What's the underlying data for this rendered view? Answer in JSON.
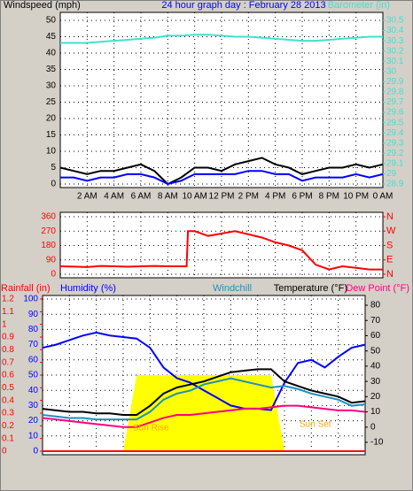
{
  "chart_data": [
    {
      "type": "line",
      "title": "24 hour graph day : February 28 2013",
      "ylabel": "Windspeed (mph)",
      "y2label": "Barometer (in)",
      "xlim": [
        0,
        24
      ],
      "xticks": [
        {
          "value": 2,
          "label": "2 AM"
        },
        {
          "value": 4,
          "label": "4 AM"
        },
        {
          "value": 6,
          "label": "6 AM"
        },
        {
          "value": 8,
          "label": "8 AM"
        },
        {
          "value": 10,
          "label": "10 AM"
        },
        {
          "value": 12,
          "label": "12 PM"
        },
        {
          "value": 14,
          "label": "2 PM"
        },
        {
          "value": 16,
          "label": "4 PM"
        },
        {
          "value": 18,
          "label": "6 PM"
        },
        {
          "value": 20,
          "label": "8 PM"
        },
        {
          "value": 22,
          "label": "10 PM"
        },
        {
          "value": 24,
          "label": "0 AM"
        }
      ],
      "ylim": [
        0,
        50
      ],
      "yticks": [
        0,
        5,
        10,
        15,
        20,
        25,
        30,
        35,
        40,
        45,
        50
      ],
      "y2lim": [
        28.9,
        30.5
      ],
      "y2ticks": [
        28.9,
        29,
        29.1,
        29.2,
        29.3,
        29.4,
        29.5,
        29.6,
        29.7,
        29.8,
        29.9,
        30,
        30.1,
        30.2,
        30.3,
        30.4,
        30.5
      ],
      "grid": true,
      "x": [
        0,
        1,
        2,
        3,
        4,
        5,
        6,
        7,
        8,
        9,
        10,
        11,
        12,
        13,
        14,
        15,
        16,
        17,
        18,
        19,
        20,
        21,
        22,
        23,
        24
      ],
      "series": [
        {
          "color": "#000000",
          "values": [
            5,
            4,
            3,
            4,
            4,
            5,
            6,
            4,
            0,
            2,
            5,
            5,
            4,
            6,
            7,
            8,
            6,
            5,
            3,
            4,
            5,
            5,
            6,
            5,
            6
          ]
        },
        {
          "color": "#0000ff",
          "values": [
            2,
            2,
            1,
            2,
            2,
            3,
            3,
            2,
            0,
            1,
            3,
            3,
            3,
            3,
            4,
            4,
            3,
            3,
            1,
            2,
            2,
            2,
            3,
            2,
            3
          ]
        },
        {
          "color": "#40e0d0",
          "axis": "y2",
          "values": [
            30.28,
            30.28,
            30.28,
            30.29,
            30.3,
            30.31,
            30.32,
            30.33,
            30.35,
            30.35,
            30.36,
            30.36,
            30.35,
            30.34,
            30.34,
            30.33,
            30.32,
            30.31,
            30.3,
            30.3,
            30.31,
            30.32,
            30.33,
            30.34,
            30.34
          ]
        }
      ]
    },
    {
      "type": "line",
      "xlim": [
        0,
        24
      ],
      "xticks": [
        2,
        4,
        6,
        8,
        10,
        12,
        14,
        16,
        18,
        20,
        22,
        24
      ],
      "ylim": [
        0,
        360
      ],
      "yticks": [
        0,
        90,
        180,
        270,
        360
      ],
      "y2lim": [
        0,
        360
      ],
      "y2ticks": [
        {
          "value": 0,
          "label": "N"
        },
        {
          "value": 90,
          "label": "E"
        },
        {
          "value": 180,
          "label": "S"
        },
        {
          "value": 270,
          "label": "W"
        },
        {
          "value": 360,
          "label": "N"
        }
      ],
      "grid": true,
      "x": [
        0,
        1,
        2,
        3,
        4,
        5,
        6,
        7,
        8,
        9,
        9.4,
        9.5,
        10,
        11,
        12,
        13,
        14,
        15,
        16,
        17,
        18,
        19,
        20,
        21,
        22,
        23,
        24
      ],
      "series": [
        {
          "color": "#ff0000",
          "values": [
            50,
            48,
            45,
            52,
            50,
            47,
            50,
            52,
            50,
            50,
            50,
            270,
            270,
            240,
            255,
            270,
            250,
            230,
            200,
            180,
            150,
            60,
            30,
            50,
            40,
            30,
            30
          ]
        }
      ]
    },
    {
      "type": "line",
      "xlim": [
        0,
        24
      ],
      "xticks": [
        2,
        4,
        6,
        8,
        10,
        12,
        14,
        16,
        18,
        20,
        22,
        24
      ],
      "ylim": [
        0,
        100
      ],
      "yticks": [
        0,
        10,
        20,
        30,
        40,
        50,
        60,
        70,
        80,
        90,
        100
      ],
      "y2lim": [
        -10,
        80
      ],
      "y2ticks": [
        -10,
        0,
        10,
        20,
        30,
        40,
        50,
        60,
        70,
        80
      ],
      "y3lim": [
        0,
        1.2
      ],
      "y3ticks": [
        0,
        0.1,
        0.2,
        0.3,
        0.4,
        0.5,
        0.6,
        0.7,
        0.8,
        0.9,
        1,
        1.1,
        1.2
      ],
      "grid": true,
      "annotations": [
        "Sun Rise",
        "Sun Set"
      ],
      "x": [
        0,
        1,
        2,
        3,
        4,
        5,
        6,
        7,
        8,
        9,
        10,
        11,
        12,
        13,
        14,
        15,
        16,
        17,
        18,
        19,
        20,
        21,
        22,
        23,
        24
      ],
      "series": [
        {
          "color": "#ffff00",
          "area": true,
          "values": [
            0,
            0,
            0,
            0,
            0,
            0,
            0,
            50,
            50,
            50,
            50,
            50,
            50,
            50,
            50,
            50,
            50,
            50,
            0,
            0,
            0,
            0,
            0,
            0,
            0
          ]
        },
        {
          "name": "Humidity (%)",
          "color": "#0000ff",
          "values": [
            68,
            70,
            73,
            76,
            78,
            76,
            75,
            74,
            68,
            55,
            48,
            45,
            40,
            35,
            30,
            28,
            28,
            27,
            45,
            58,
            60,
            55,
            62,
            68,
            70
          ]
        },
        {
          "name": "Windchill",
          "color": "#1e90c0",
          "axis": "y2",
          "values": [
            8,
            7,
            6,
            6,
            5,
            5,
            5,
            5,
            10,
            18,
            22,
            24,
            28,
            30,
            32,
            30,
            28,
            26,
            27,
            25,
            22,
            20,
            18,
            14,
            15
          ]
        },
        {
          "name": "Temperature (°F)",
          "color": "#000000",
          "axis": "y2",
          "values": [
            12,
            11,
            10,
            10,
            9,
            9,
            8,
            8,
            14,
            22,
            26,
            28,
            30,
            33,
            36,
            37,
            38,
            38,
            30,
            27,
            24,
            22,
            20,
            16,
            17
          ]
        },
        {
          "name": "Dew Point (°F)",
          "color": "#ff0080",
          "axis": "y2",
          "values": [
            6,
            5,
            4,
            3,
            2,
            1,
            0,
            0,
            3,
            6,
            8,
            8,
            9,
            10,
            11,
            12,
            12,
            13,
            14,
            14,
            13,
            12,
            11,
            11,
            10
          ]
        },
        {
          "name": "Rainfall (in)",
          "color": "#ff0000",
          "axis": "y3",
          "values": [
            0,
            0,
            0,
            0,
            0,
            0,
            0,
            0,
            0,
            0,
            0,
            0,
            0,
            0,
            0,
            0,
            0,
            0,
            0,
            0,
            0,
            0,
            0,
            0,
            0
          ]
        }
      ]
    }
  ]
}
